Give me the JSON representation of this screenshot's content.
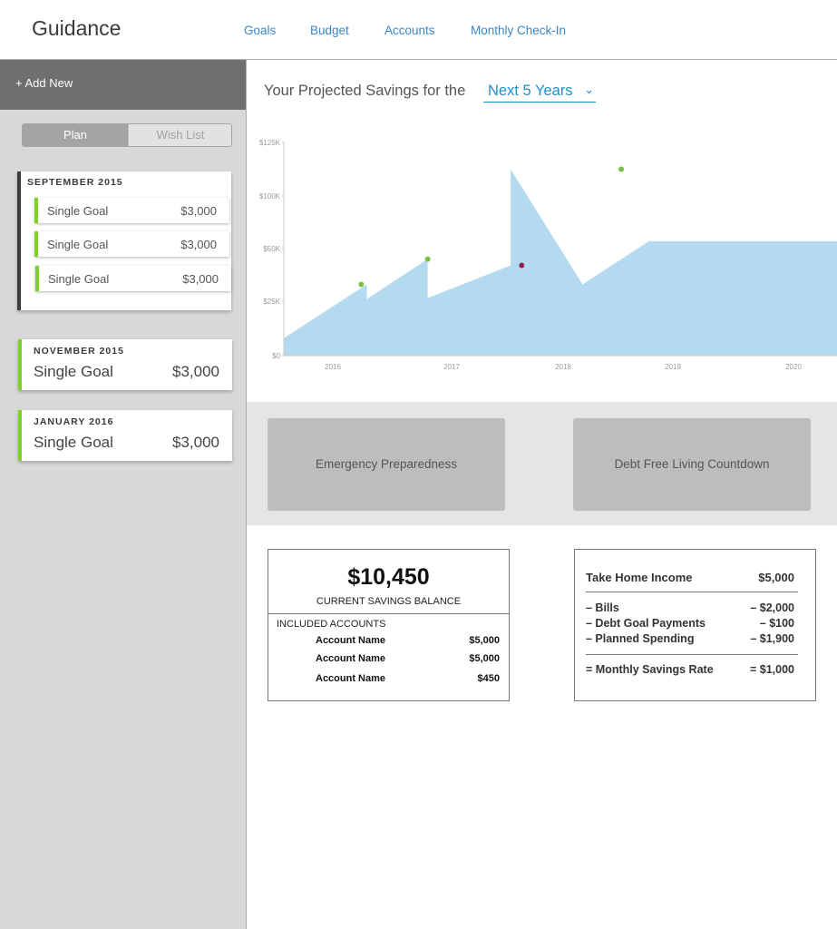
{
  "header": {
    "brand": "Guidance",
    "nav": [
      "Goals",
      "Budget",
      "Accounts",
      "Monthly Check-In"
    ]
  },
  "sidebar": {
    "add_new": "+ Add New",
    "toggle": {
      "plan": "Plan",
      "wish_list": "Wish List",
      "active": "Plan"
    },
    "groups": [
      {
        "month": "SEPTEMBER 2015",
        "goals": [
          {
            "name": "Single Goal",
            "amount": "$3,000"
          },
          {
            "name": "Single Goal",
            "amount": "$3,000"
          },
          {
            "name": "Single Goal",
            "amount": "$3,000"
          }
        ]
      },
      {
        "month": "NOVEMBER 2015",
        "goals": [
          {
            "name": "Single Goal",
            "amount": "$3,000"
          }
        ]
      },
      {
        "month": "JANUARY 2016",
        "goals": [
          {
            "name": "Single Goal",
            "amount": "$3,000"
          }
        ]
      }
    ]
  },
  "projection": {
    "label": "Your Projected Savings for the",
    "period": "Next 5 Years"
  },
  "chart_data": {
    "type": "area",
    "y_tick_labels": [
      "$0",
      "$25K",
      "$50K",
      "$100K",
      "$125K"
    ],
    "x_tick_labels": [
      "2016",
      "2017",
      "2018",
      "2019",
      "2020"
    ],
    "x": [
      2015.6,
      2016.35,
      2016.35,
      2016.9,
      2016.9,
      2017.65,
      2017.65,
      2018.3,
      2018.3,
      2018.9
    ],
    "y": [
      8000,
      33000,
      26000,
      45000,
      26500,
      42000,
      112500,
      33000,
      33000,
      57000
    ],
    "area_color": "#b3daee",
    "markers": [
      {
        "x": 2016.3,
        "y": 33000,
        "color": "#7ac143"
      },
      {
        "x": 2016.9,
        "y": 45000,
        "color": "#7ac143"
      },
      {
        "x": 2017.75,
        "y": 42000,
        "color": "#9b1b5a"
      },
      {
        "x": 2018.65,
        "y": 112500,
        "color": "#7ac143"
      }
    ]
  },
  "tiles": [
    "Emergency Preparedness",
    "Debt Free Living Countdown"
  ],
  "savings": {
    "balance": "$10,450",
    "balance_label": "CURRENT SAVINGS BALANCE",
    "included_label": "INCLUDED ACCOUNTS",
    "accounts": [
      {
        "name": "Account Name",
        "value": "$5,000"
      },
      {
        "name": "Account Name",
        "value": "$5,000"
      },
      {
        "name": "Account Name",
        "value": "$450"
      }
    ]
  },
  "budget": {
    "income": {
      "label": "Take Home Income",
      "value": "$5,000"
    },
    "deductions": [
      {
        "label": "– Bills",
        "value": "– $2,000"
      },
      {
        "label": "– Debt Goal Payments",
        "value": "– $100"
      },
      {
        "label": "– Planned Spending",
        "value": "– $1,900"
      }
    ],
    "result": {
      "label": "= Monthly Savings Rate",
      "value": "= $1,000"
    }
  }
}
